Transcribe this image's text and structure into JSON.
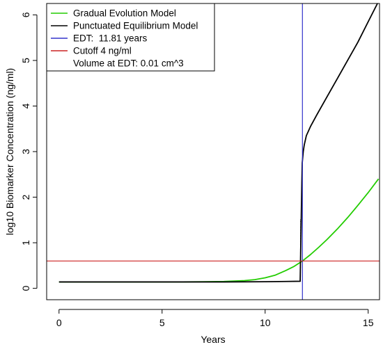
{
  "chart_data": {
    "type": "line",
    "xlabel": "Years",
    "ylabel": "log10 Biomarker Concentration (ng/ml)",
    "xlim": [
      -0.6,
      15.55
    ],
    "ylim": [
      -0.25,
      6.25
    ],
    "x_ticks": [
      0,
      5,
      10,
      15
    ],
    "y_ticks": [
      0,
      1,
      2,
      3,
      4,
      5,
      6
    ],
    "grid": false,
    "legend_position": "top-left",
    "series": [
      {
        "name": "Gradual Evolution Model",
        "color": "#22cc00",
        "x": [
          0,
          2,
          4,
          6,
          7,
          8,
          9,
          9.5,
          10,
          10.5,
          11,
          11.4,
          11.81,
          12.2,
          12.6,
          13,
          13.5,
          14,
          14.5,
          15,
          15.5
        ],
        "y": [
          0.14,
          0.14,
          0.14,
          0.14,
          0.145,
          0.15,
          0.17,
          0.19,
          0.23,
          0.29,
          0.39,
          0.48,
          0.6,
          0.74,
          0.9,
          1.07,
          1.3,
          1.55,
          1.82,
          2.1,
          2.4
        ]
      },
      {
        "name": "Punctuated Equilibrium Model",
        "color": "#000000",
        "x": [
          0,
          4,
          8,
          10,
          11,
          11.7,
          11.75,
          11.78,
          11.8,
          11.85,
          11.9,
          12,
          12.2,
          12.5,
          13,
          13.5,
          14,
          14.5,
          15,
          15.45
        ],
        "y": [
          0.14,
          0.14,
          0.14,
          0.145,
          0.15,
          0.155,
          1.5,
          2.3,
          2.75,
          3.0,
          3.15,
          3.35,
          3.55,
          3.8,
          4.2,
          4.6,
          5.0,
          5.4,
          5.85,
          6.25
        ]
      },
      {
        "name": "EDT:  11.81 years",
        "color": "#3333cc",
        "type": "vline",
        "x": 11.81
      },
      {
        "name": "Cutoff 4 ng/ml",
        "color": "#cc2222",
        "type": "hline",
        "y": 0.6
      }
    ],
    "legend_extra": "Volume at EDT: 0.01 cm^3"
  }
}
